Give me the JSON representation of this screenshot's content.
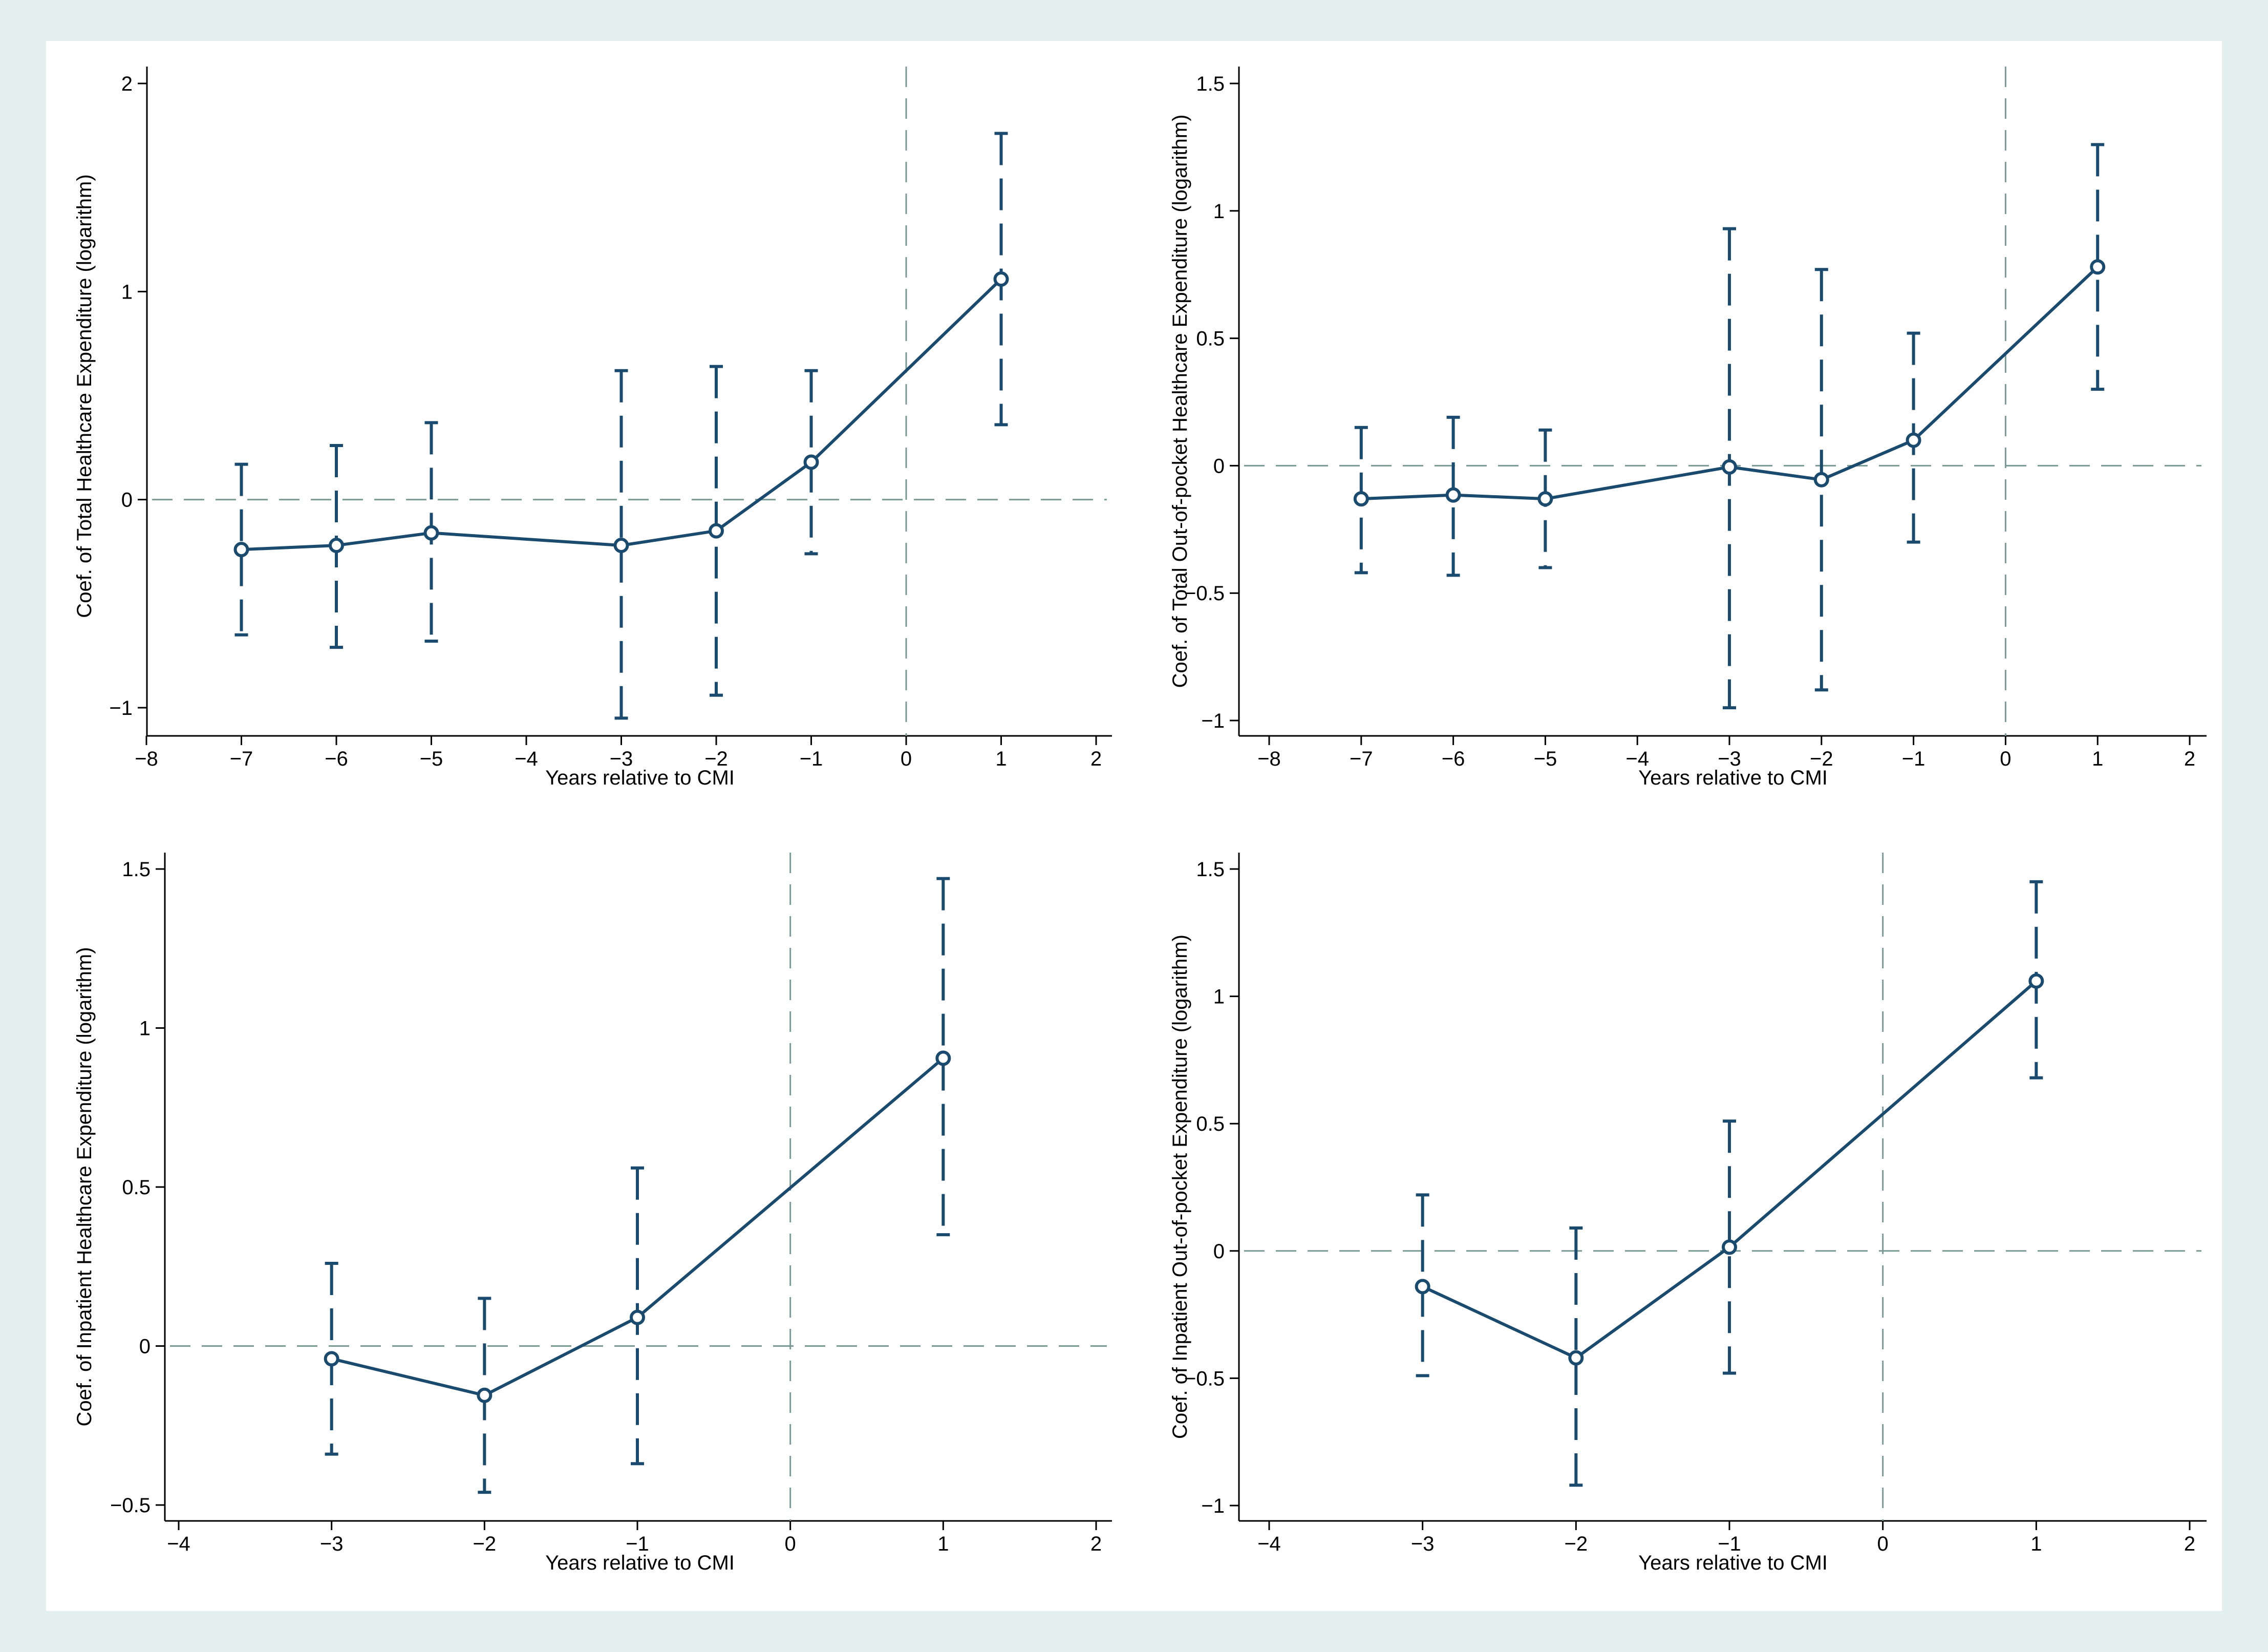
{
  "chart_data": [
    {
      "type": "line",
      "title": "",
      "xlabel": "Years relative to CMI",
      "ylabel": "Coef. of Total Healthcare Expenditure (logarithm)",
      "xlim": [
        -8,
        2
      ],
      "ylim": [
        -1,
        2
      ],
      "xticks": [
        -8,
        -7,
        -6,
        -5,
        -4,
        -3,
        -2,
        -1,
        0,
        1,
        2
      ],
      "yticks": [
        -1,
        0,
        1,
        2
      ],
      "ytick_labels": [
        "−1",
        "0",
        "1",
        "2"
      ],
      "x": [
        -7,
        -6,
        -5,
        -3,
        -2,
        -1,
        1
      ],
      "y": [
        -0.24,
        -0.22,
        -0.16,
        -0.22,
        -0.15,
        0.18,
        1.06
      ],
      "ci_low": [
        -0.65,
        -0.71,
        -0.68,
        -1.05,
        -0.94,
        -0.26,
        0.36
      ],
      "ci_high": [
        0.17,
        0.26,
        0.37,
        0.62,
        0.64,
        0.62,
        1.76
      ],
      "ref_x": 0,
      "ref_y": 0,
      "grid": false
    },
    {
      "type": "line",
      "title": "",
      "xlabel": "Years relative to CMI",
      "ylabel": "Coef. of Total Out-of-pocket Healthcare Expenditure (logarithm)",
      "xlim": [
        -8,
        2
      ],
      "ylim": [
        -1,
        1.5
      ],
      "xticks": [
        -8,
        -7,
        -6,
        -5,
        -4,
        -3,
        -2,
        -1,
        0,
        1,
        2
      ],
      "yticks": [
        -1,
        -0.5,
        0,
        0.5,
        1,
        1.5
      ],
      "ytick_labels": [
        "−1",
        "−0.5",
        "0",
        "0.5",
        "1",
        "1.5"
      ],
      "x": [
        -7,
        -6,
        -5,
        -3,
        -2,
        -1,
        1
      ],
      "y": [
        -0.13,
        -0.115,
        -0.13,
        -0.005,
        -0.055,
        0.1,
        0.78
      ],
      "ci_low": [
        -0.42,
        -0.43,
        -0.4,
        -0.95,
        -0.88,
        -0.3,
        0.3
      ],
      "ci_high": [
        0.15,
        0.19,
        0.14,
        0.93,
        0.77,
        0.52,
        1.26
      ],
      "ref_x": 0,
      "ref_y": 0,
      "grid": false
    },
    {
      "type": "line",
      "title": "",
      "xlabel": "Years relative to CMI",
      "ylabel": "Coef. of Inpatient Healthcare Expenditure (logarithm)",
      "xlim": [
        -4,
        2
      ],
      "ylim": [
        -0.5,
        1.5
      ],
      "xticks": [
        -4,
        -3,
        -2,
        -1,
        0,
        1,
        2
      ],
      "yticks": [
        -0.5,
        0,
        0.5,
        1,
        1.5
      ],
      "ytick_labels": [
        "−0.5",
        "0",
        "0.5",
        "1",
        "1.5"
      ],
      "x": [
        -3,
        -2,
        -1,
        1
      ],
      "y": [
        -0.04,
        -0.155,
        0.09,
        0.905
      ],
      "ci_low": [
        -0.34,
        -0.46,
        -0.37,
        0.35
      ],
      "ci_high": [
        0.26,
        0.15,
        0.56,
        1.47
      ],
      "ref_x": 0,
      "ref_y": 0,
      "grid": false
    },
    {
      "type": "line",
      "title": "",
      "xlabel": "Years relative to CMI",
      "ylabel": "Coef. of Inpatient Out-of-pocket Expenditure (logarithm)",
      "xlim": [
        -4,
        2
      ],
      "ylim": [
        -1,
        1.5
      ],
      "xticks": [
        -4,
        -3,
        -2,
        -1,
        0,
        1,
        2
      ],
      "yticks": [
        -1,
        -0.5,
        0,
        0.5,
        1,
        1.5
      ],
      "ytick_labels": [
        "−1",
        "−0.5",
        "0",
        "0.5",
        "1",
        "1.5"
      ],
      "x": [
        -3,
        -2,
        -1,
        1
      ],
      "y": [
        -0.14,
        -0.42,
        0.015,
        1.06
      ],
      "ci_low": [
        -0.49,
        -0.92,
        -0.48,
        0.68
      ],
      "ci_high": [
        0.22,
        0.09,
        0.51,
        1.45
      ],
      "ref_x": 0,
      "ref_y": 0,
      "grid": false
    }
  ]
}
